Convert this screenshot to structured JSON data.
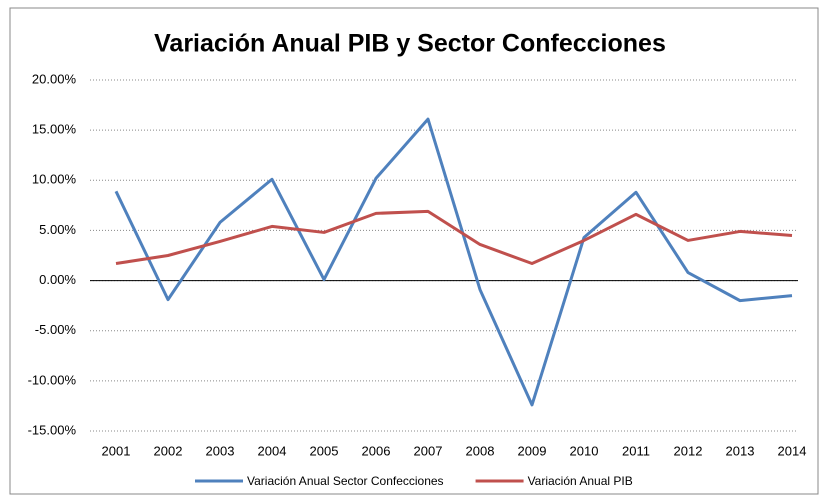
{
  "chart_data": {
    "type": "line",
    "title": "Variación Anual PIB y Sector Confecciones",
    "categories": [
      "2001",
      "2002",
      "2003",
      "2004",
      "2005",
      "2006",
      "2007",
      "2008",
      "2009",
      "2010",
      "2011",
      "2012",
      "2013",
      "2014"
    ],
    "series": [
      {
        "name": "Variación Anual Sector Confecciones",
        "color": "#4f81bd",
        "values": [
          8.9,
          -1.9,
          5.8,
          10.1,
          0.1,
          10.2,
          16.1,
          -0.9,
          -12.4,
          4.3,
          8.8,
          0.8,
          -2.0,
          -1.5
        ]
      },
      {
        "name": "Variación Anual PIB",
        "color": "#c0504d",
        "values": [
          1.7,
          2.5,
          3.9,
          5.4,
          4.8,
          6.7,
          6.9,
          3.6,
          1.7,
          4.0,
          6.6,
          4.0,
          4.9,
          4.5
        ]
      }
    ],
    "ylim": [
      -15,
      20
    ],
    "yticks": [
      {
        "value": -15,
        "label": "-15.00%"
      },
      {
        "value": -10,
        "label": "-10.00%"
      },
      {
        "value": -5,
        "label": "-5.00%"
      },
      {
        "value": 0,
        "label": "0.00%"
      },
      {
        "value": 5,
        "label": "5.00%"
      },
      {
        "value": 10,
        "label": "10.00%"
      },
      {
        "value": 15,
        "label": "15.00%"
      },
      {
        "value": 20,
        "label": "20.00%"
      }
    ],
    "grid": true,
    "legend": "bottom"
  }
}
